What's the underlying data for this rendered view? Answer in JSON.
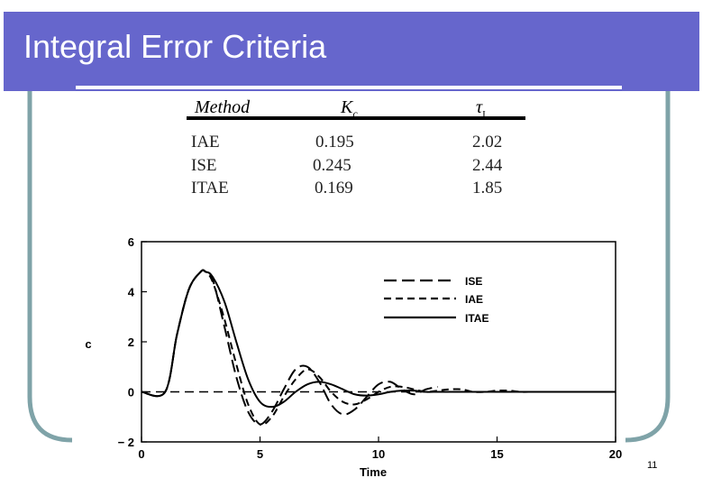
{
  "slide": {
    "title": "Integral Error Criteria",
    "page_number": "11",
    "colors": {
      "banner": "#6666cc",
      "frame": "#7fa3a8"
    }
  },
  "table": {
    "headers": [
      "Method",
      "K",
      "c",
      "τ",
      "I"
    ],
    "rows": [
      [
        "IAE",
        "0.195",
        "2.02"
      ],
      [
        "ISE",
        "0.245",
        "2.44"
      ],
      [
        "ITAE",
        "0.169",
        "1.85"
      ]
    ]
  },
  "chart_data": {
    "type": "line",
    "xlabel": "Time",
    "ylabel": "c",
    "xlim": [
      0,
      20
    ],
    "ylim": [
      -2,
      6
    ],
    "xticks": [
      "0",
      "5",
      "10",
      "15",
      "20"
    ],
    "yticks": [
      "− 2",
      "0",
      "2",
      "4",
      "6"
    ],
    "legend_position": "top-right",
    "series": [
      {
        "name": "ISE",
        "style": "long-dash",
        "x": [
          0,
          1,
          1.5,
          2,
          2.5,
          2.7,
          3,
          3.5,
          4,
          4.5,
          5,
          5.5,
          6,
          6.5,
          7,
          7.5,
          8,
          8.5,
          9,
          9.5,
          10,
          10.5,
          11,
          11.5,
          12,
          12.5
        ],
        "y": [
          0,
          0,
          2.3,
          4.1,
          4.8,
          4.8,
          4.5,
          2.6,
          0.6,
          -0.8,
          -1.3,
          -0.8,
          0.1,
          0.9,
          1.0,
          0.4,
          -0.5,
          -0.9,
          -0.7,
          -0.2,
          0.3,
          0.4,
          0.1,
          -0.1,
          0.1,
          0.2
        ]
      },
      {
        "name": "IAE",
        "style": "short-dash",
        "x": [
          0,
          1,
          1.5,
          2,
          2.5,
          2.7,
          3,
          3.5,
          4,
          4.5,
          5,
          5.5,
          6,
          6.5,
          7,
          7.5,
          8,
          8.5,
          9,
          9.5,
          10,
          10.5,
          11,
          11.5,
          12,
          12.5,
          13,
          13.5,
          14,
          14.5,
          15,
          15.5,
          16,
          16.5,
          17,
          17.5,
          18,
          18.5,
          19,
          19.5,
          20
        ],
        "y": [
          0,
          0,
          2.3,
          4.1,
          4.8,
          4.8,
          4.4,
          2.9,
          1.1,
          -0.5,
          -1.3,
          -1.0,
          -0.2,
          0.5,
          0.9,
          0.6,
          0.0,
          -0.4,
          -0.5,
          -0.3,
          0.0,
          0.2,
          0.2,
          0.1,
          0.0,
          0.05,
          0.1,
          0.1,
          0.0,
          0.0,
          0.05,
          0.05,
          0.0,
          0.0,
          0.0,
          0.0,
          0.0,
          0.0,
          0.0,
          0.0,
          0.0
        ]
      },
      {
        "name": "ITAE",
        "style": "solid",
        "x": [
          0,
          1,
          1.5,
          2,
          2.5,
          2.7,
          3,
          3.5,
          4,
          4.5,
          5,
          5.5,
          6,
          6.5,
          7,
          7.5,
          8,
          8.5,
          9,
          9.5,
          10,
          10.5,
          11,
          11.5,
          12,
          12.5,
          13,
          13.5,
          14,
          14.5,
          15,
          15.5,
          16,
          16.5,
          17,
          17.5,
          18,
          18.5,
          19,
          19.5,
          20
        ],
        "y": [
          0,
          0,
          2.3,
          4.1,
          4.8,
          4.8,
          4.6,
          3.6,
          2.0,
          0.5,
          -0.4,
          -0.6,
          -0.4,
          0.0,
          0.3,
          0.4,
          0.3,
          0.1,
          -0.1,
          -0.15,
          -0.1,
          0.0,
          0.05,
          0.05,
          0.0,
          0.0,
          0.0,
          0.0,
          0.0,
          0.0,
          0.0,
          0.0,
          0.0,
          0.0,
          0.0,
          0.0,
          0.0,
          0.0,
          0.0,
          0.0,
          0.0
        ]
      }
    ],
    "extra_curve_note": ""
  }
}
